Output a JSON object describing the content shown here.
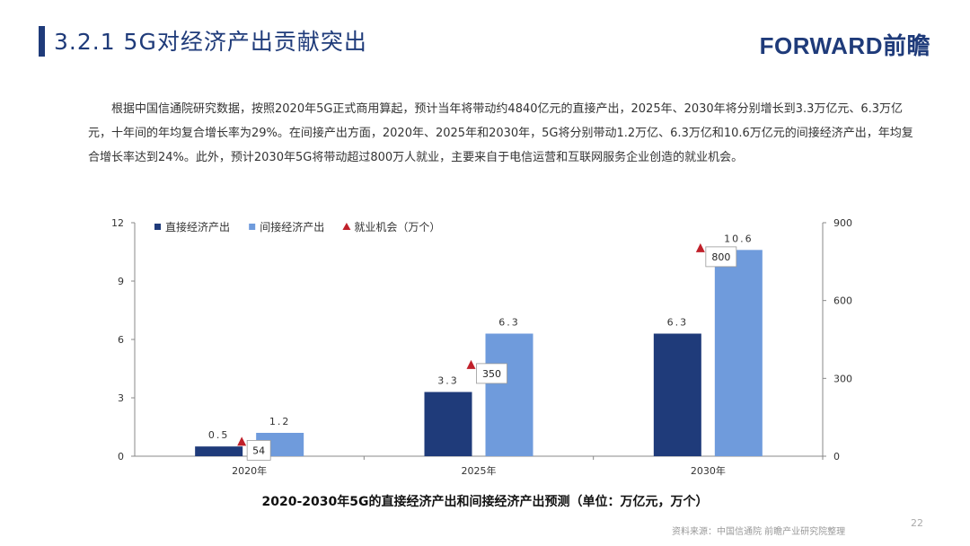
{
  "header": {
    "title": "3.2.1 5G对经济产出贡献突出",
    "brand": "FORWARD前瞻"
  },
  "body_text": "根据中国信通院研究数据，按照2020年5G正式商用算起，预计当年将带动约4840亿元的直接产出，2025年、2030年将分别增长到3.3万亿元、6.3万亿元，十年间的年均复合增长率为29%。在间接产出方面，2020年、2025年和2030年，5G将分别带动1.2万亿、6.3万亿和10.6万亿元的间接经济产出，年均复合增长率达到24%。此外，预计2030年5G将带动超过800万人就业，主要来自于电信运营和互联网服务企业创造的就业机会。",
  "footer": {
    "source": "资料来源：中国信通院 前瞻产业研究院整理",
    "page_number": "22"
  },
  "chart_data": {
    "type": "bar",
    "title": "2020-2030年5G的直接经济产出和间接经济产出预测（单位：万亿元，万个）",
    "categories": [
      "2020年",
      "2025年",
      "2030年"
    ],
    "series": [
      {
        "name": "直接经济产出",
        "type": "bar",
        "axis": "left",
        "color": "#1f3b7a",
        "values": [
          0.5,
          3.3,
          6.3
        ],
        "labels": [
          "0.5",
          "3.3",
          "6.3"
        ]
      },
      {
        "name": "间接经济产出",
        "type": "bar",
        "axis": "left",
        "color": "#6f9bdc",
        "values": [
          1.2,
          6.3,
          10.6
        ],
        "labels": [
          "1.2",
          "6.3",
          "10.6"
        ]
      },
      {
        "name": "就业机会（万个）",
        "type": "marker",
        "axis": "right",
        "color": "#c0202a",
        "values": [
          54,
          350,
          800
        ],
        "labels": [
          "54",
          "350",
          "800"
        ]
      }
    ],
    "y_left": {
      "range": [
        0,
        12
      ],
      "ticks": [
        "0",
        "3",
        "6",
        "9",
        "12"
      ]
    },
    "y_right": {
      "range": [
        0,
        900
      ],
      "ticks": [
        "0",
        "300",
        "600",
        "900"
      ]
    },
    "legend_position": "top-left",
    "grid": false
  }
}
